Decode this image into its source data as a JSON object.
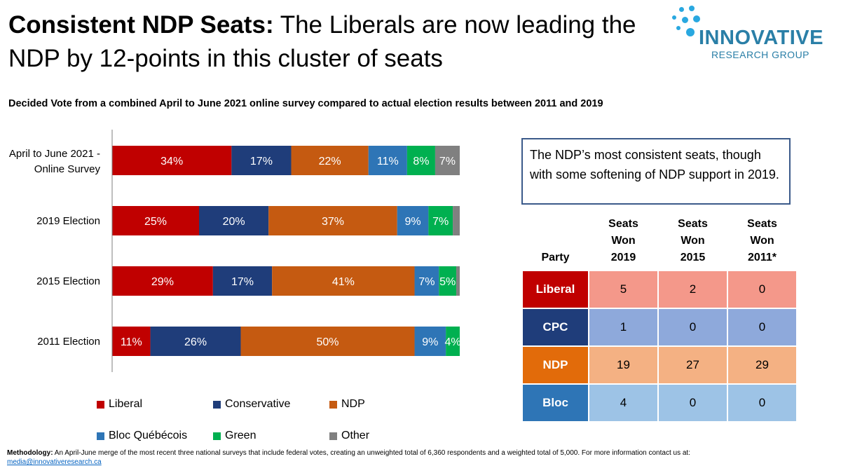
{
  "header": {
    "title_bold": "Consistent NDP Seats:",
    "title_rest": " The Liberals are now leading the NDP by 12-points in this cluster of seats",
    "subtitle": "Decided Vote from a combined April to June 2021 online survey compared to actual election results between 2011 and 2019"
  },
  "logo": {
    "name": "INNOVATIVE",
    "sub": "RESEARCH GROUP",
    "color": "#2a7fa7"
  },
  "chart_data": {
    "type": "bar",
    "orientation": "horizontal",
    "stacked": true,
    "categories": [
      "April to June 2021 - Online Survey",
      "2019 Election",
      "2015 Election",
      "2011 Election"
    ],
    "series": [
      {
        "name": "Liberal",
        "color": "#c00000",
        "values": [
          34,
          25,
          29,
          11
        ]
      },
      {
        "name": "Conservative",
        "color": "#1f3d7a",
        "values": [
          17,
          20,
          17,
          26
        ]
      },
      {
        "name": "NDP",
        "color": "#c55a11",
        "values": [
          22,
          37,
          41,
          50
        ]
      },
      {
        "name": "Bloc Québécois",
        "color": "#2e75b6",
        "values": [
          11,
          9,
          7,
          9
        ]
      },
      {
        "name": "Green",
        "color": "#00b050",
        "values": [
          8,
          7,
          5,
          4
        ]
      },
      {
        "name": "Other",
        "color": "#808080",
        "values": [
          7,
          2,
          1,
          0
        ]
      }
    ],
    "data_labels": [
      [
        "34%",
        "17%",
        "22%",
        "11%",
        "8%",
        "7%"
      ],
      [
        "25%",
        "20%",
        "37%",
        "9%",
        "7%",
        ""
      ],
      [
        "29%",
        "17%",
        "41%",
        "7%",
        "5%",
        ""
      ],
      [
        "11%",
        "26%",
        "50%",
        "9%",
        "4%",
        ""
      ]
    ],
    "legend_position": "bottom"
  },
  "callout": {
    "text": "The NDP’s most consistent seats, though with some softening of NDP support in 2019."
  },
  "seats_table": {
    "headers": [
      {
        "lines": [
          "Party"
        ]
      },
      {
        "lines": [
          "Seats",
          "Won",
          "2019"
        ]
      },
      {
        "lines": [
          "Seats",
          "Won",
          "2015"
        ]
      },
      {
        "lines": [
          "Seats",
          "Won",
          "2011*"
        ]
      }
    ],
    "rows": [
      {
        "party": "Liberal",
        "values": [
          "5",
          "2",
          "0"
        ],
        "party_color": "#c00000",
        "cell_color": "#f4988a"
      },
      {
        "party": "CPC",
        "values": [
          "1",
          "0",
          "0"
        ],
        "party_color": "#1f3d7a",
        "cell_color": "#8ea9db"
      },
      {
        "party": "NDP",
        "values": [
          "19",
          "27",
          "29"
        ],
        "party_color": "#e26b0a",
        "cell_color": "#f4b183"
      },
      {
        "party": "Bloc",
        "values": [
          "4",
          "0",
          "0"
        ],
        "party_color": "#2e75b6",
        "cell_color": "#9dc3e6"
      }
    ]
  },
  "methodology": {
    "label": "Methodology:",
    "text": " An April-June merge of the most recent three national surveys that include federal votes, creating an unweighted total of 6,360 respondents and a weighted total of 5,000. For more information contact us at: ",
    "email": "media@innovativeresearch.ca"
  }
}
